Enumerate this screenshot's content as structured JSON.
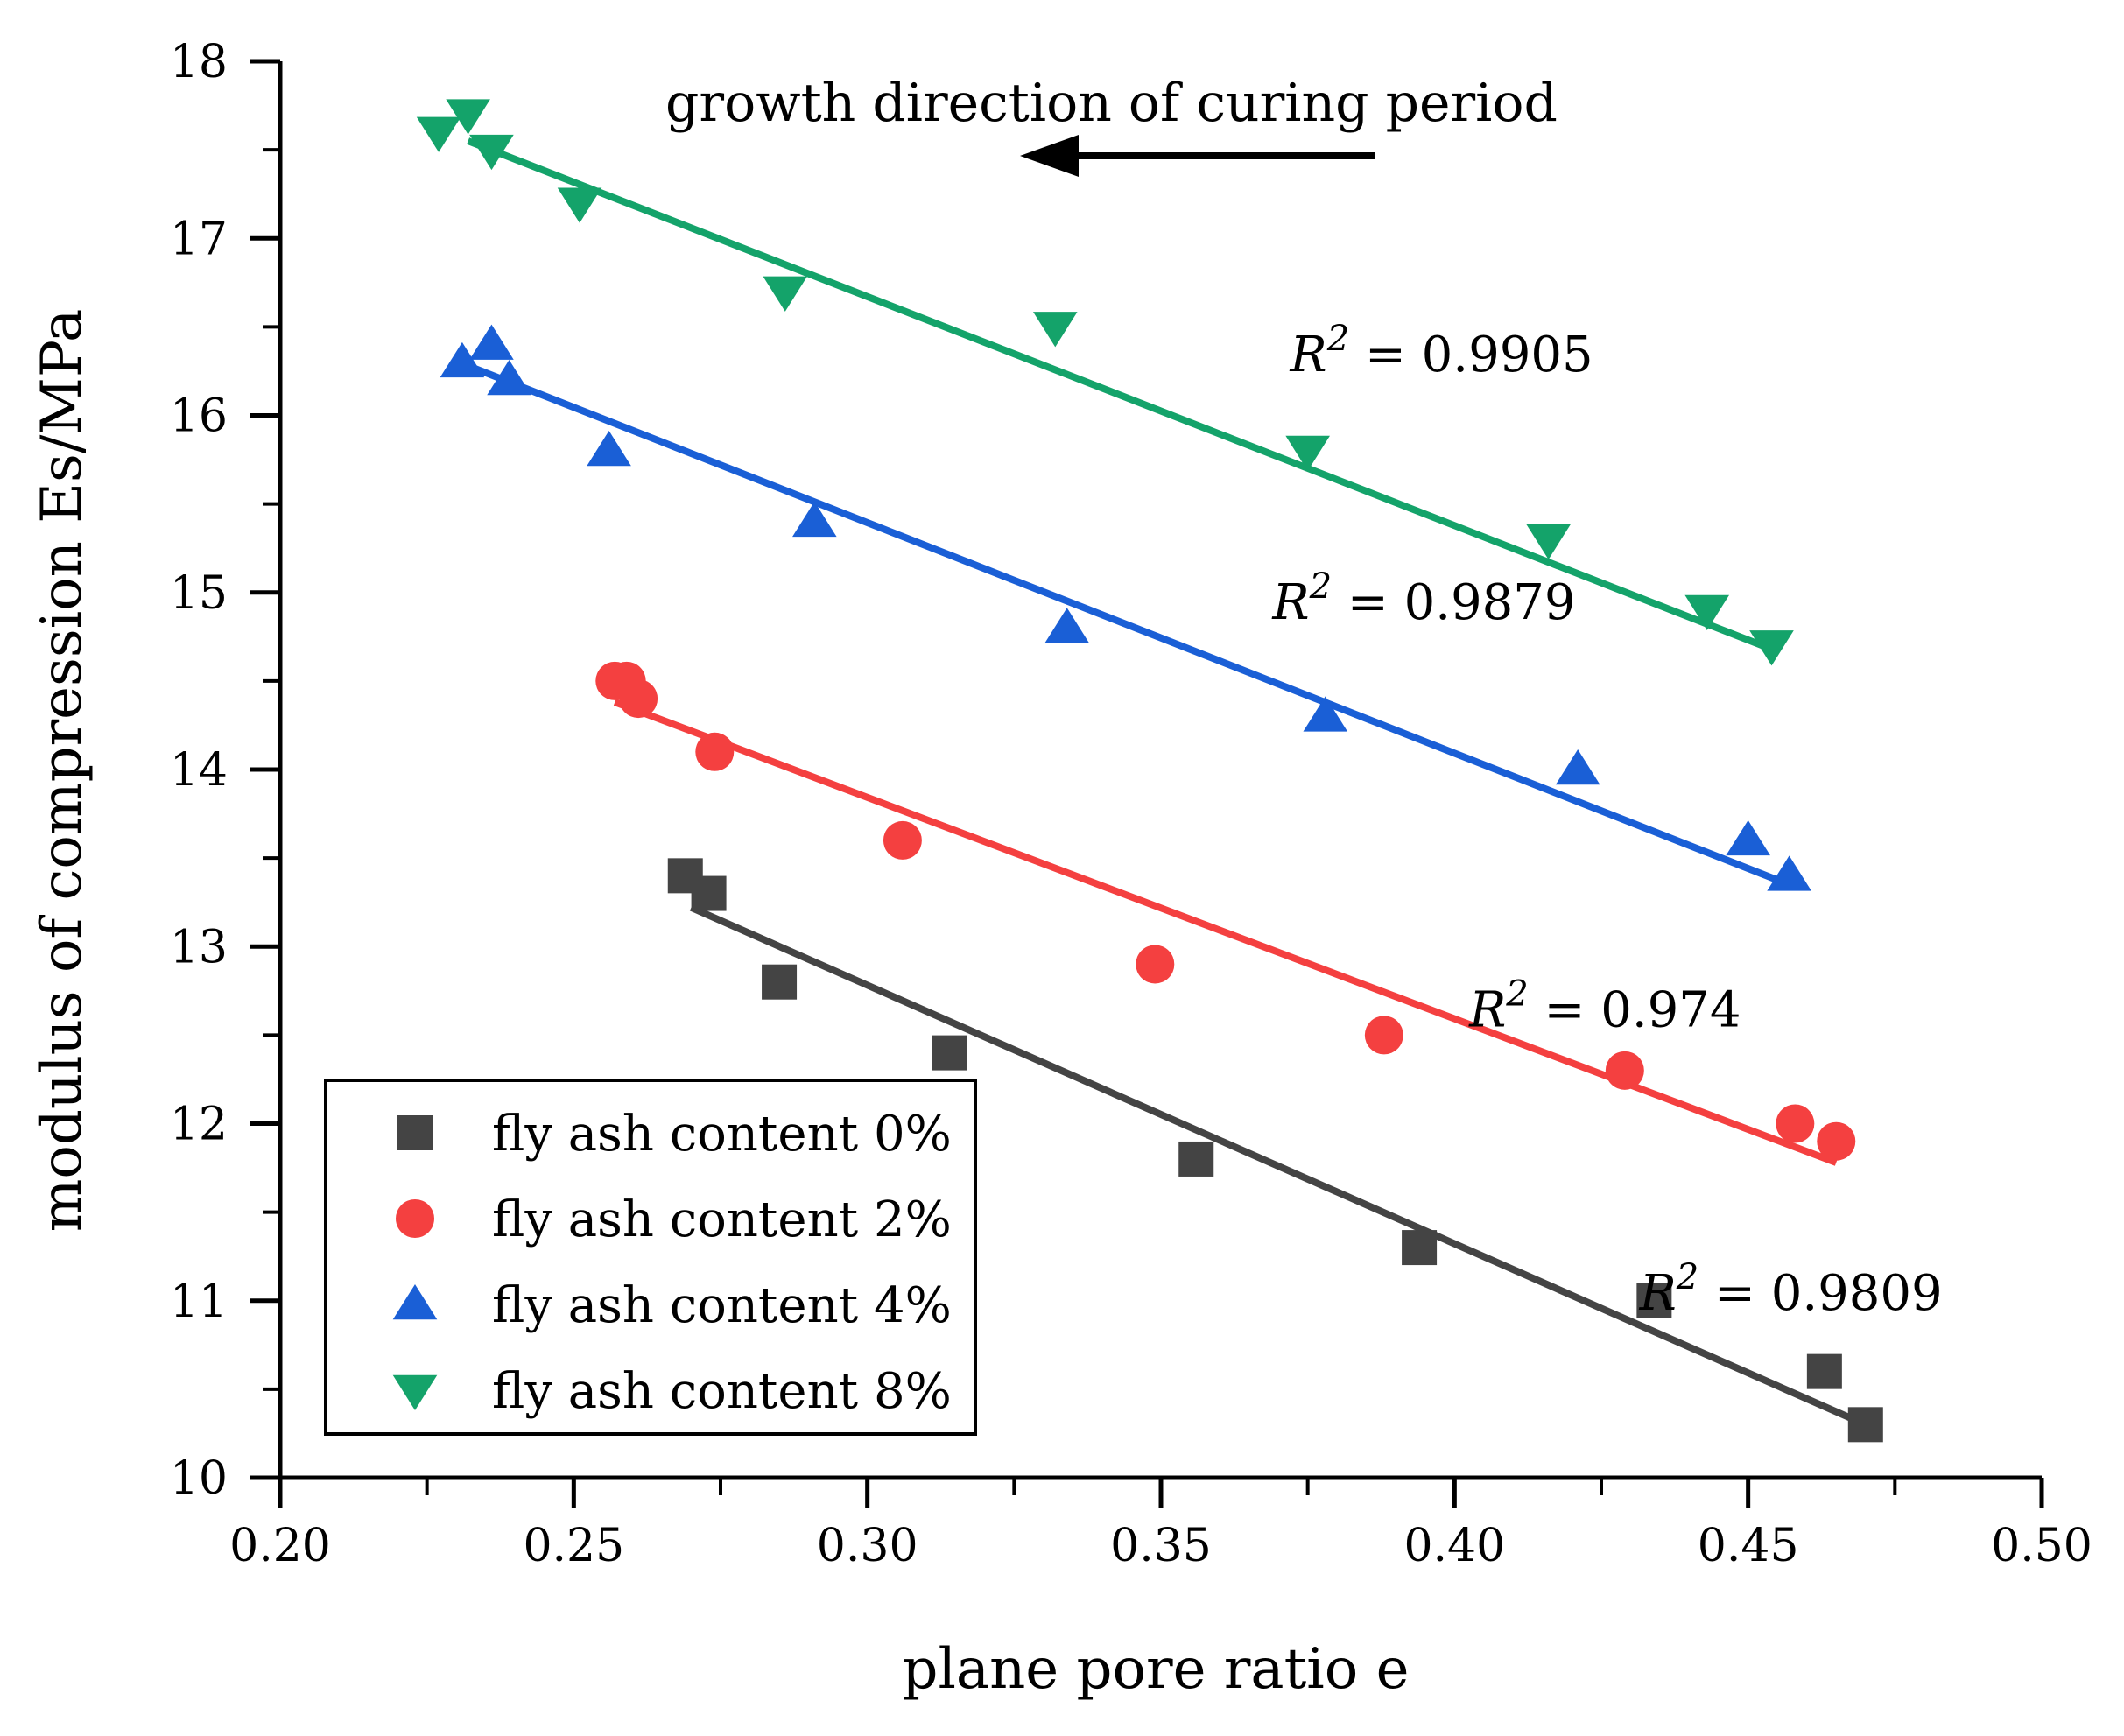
{
  "chart_data": {
    "type": "scatter",
    "xlabel": "plane pore ratio e",
    "ylabel": "modulus of compression Es/MPa",
    "xlim": [
      0.2,
      0.5
    ],
    "ylim": [
      10,
      18
    ],
    "xticks": [
      "0.20",
      "0.25",
      "0.30",
      "0.35",
      "0.40",
      "0.45",
      "0.50"
    ],
    "yticks": [
      "10",
      "11",
      "12",
      "13",
      "14",
      "15",
      "16",
      "17",
      "18"
    ],
    "annotation": "growth direction of curing period",
    "legend_position": "bottom-left",
    "series": [
      {
        "name": "fly ash content 0%",
        "marker": "square",
        "color": "#444444",
        "points": [
          [
            0.269,
            13.4
          ],
          [
            0.273,
            13.3
          ],
          [
            0.285,
            12.8
          ],
          [
            0.314,
            12.4
          ],
          [
            0.356,
            11.8
          ],
          [
            0.394,
            11.3
          ],
          [
            0.434,
            11.0
          ],
          [
            0.463,
            10.6
          ],
          [
            0.47,
            10.3
          ]
        ],
        "fit": [
          [
            0.27,
            13.22
          ],
          [
            0.47,
            10.3
          ]
        ],
        "r2_symbol": "R",
        "r2_exp": "2",
        "r2_text": " = 0.9809",
        "r2_value": 0.9809
      },
      {
        "name": "fly ash content 2%",
        "marker": "circle",
        "color": "#f44040",
        "points": [
          [
            0.257,
            14.5
          ],
          [
            0.259,
            14.5
          ],
          [
            0.261,
            14.4
          ],
          [
            0.274,
            14.1
          ],
          [
            0.306,
            13.6
          ],
          [
            0.349,
            12.9
          ],
          [
            0.388,
            12.5
          ],
          [
            0.429,
            12.3
          ],
          [
            0.458,
            12.0
          ],
          [
            0.465,
            11.9
          ]
        ],
        "fit": [
          [
            0.257,
            14.38
          ],
          [
            0.465,
            11.78
          ]
        ],
        "r2_symbol": "R",
        "r2_exp": "2",
        "r2_text": " = 0.974",
        "r2_value": 0.974
      },
      {
        "name": "fly ash content 4%",
        "marker": "triangle-up",
        "color": "#1a5fd6",
        "points": [
          [
            0.231,
            16.3
          ],
          [
            0.236,
            16.4
          ],
          [
            0.239,
            16.2
          ],
          [
            0.256,
            15.8
          ],
          [
            0.291,
            15.4
          ],
          [
            0.334,
            14.8
          ],
          [
            0.378,
            14.3
          ],
          [
            0.421,
            14.0
          ],
          [
            0.45,
            13.6
          ],
          [
            0.457,
            13.4
          ]
        ],
        "fit": [
          [
            0.232,
            16.28
          ],
          [
            0.457,
            13.35
          ]
        ],
        "r2_symbol": "R",
        "r2_exp": "2",
        "r2_text": " = 0.9879",
        "r2_value": 0.9879
      },
      {
        "name": "fly ash content 8%",
        "marker": "triangle-down",
        "color": "#14a36a",
        "points": [
          [
            0.227,
            17.6
          ],
          [
            0.232,
            17.7
          ],
          [
            0.236,
            17.5
          ],
          [
            0.251,
            17.2
          ],
          [
            0.286,
            16.7
          ],
          [
            0.332,
            16.5
          ],
          [
            0.375,
            15.8
          ],
          [
            0.416,
            15.3
          ],
          [
            0.443,
            14.9
          ],
          [
            0.454,
            14.7
          ]
        ],
        "fit": [
          [
            0.232,
            17.55
          ],
          [
            0.454,
            14.68
          ]
        ],
        "r2_symbol": "R",
        "r2_exp": "2",
        "r2_text": " = 0.9905",
        "r2_value": 0.9905
      }
    ]
  }
}
